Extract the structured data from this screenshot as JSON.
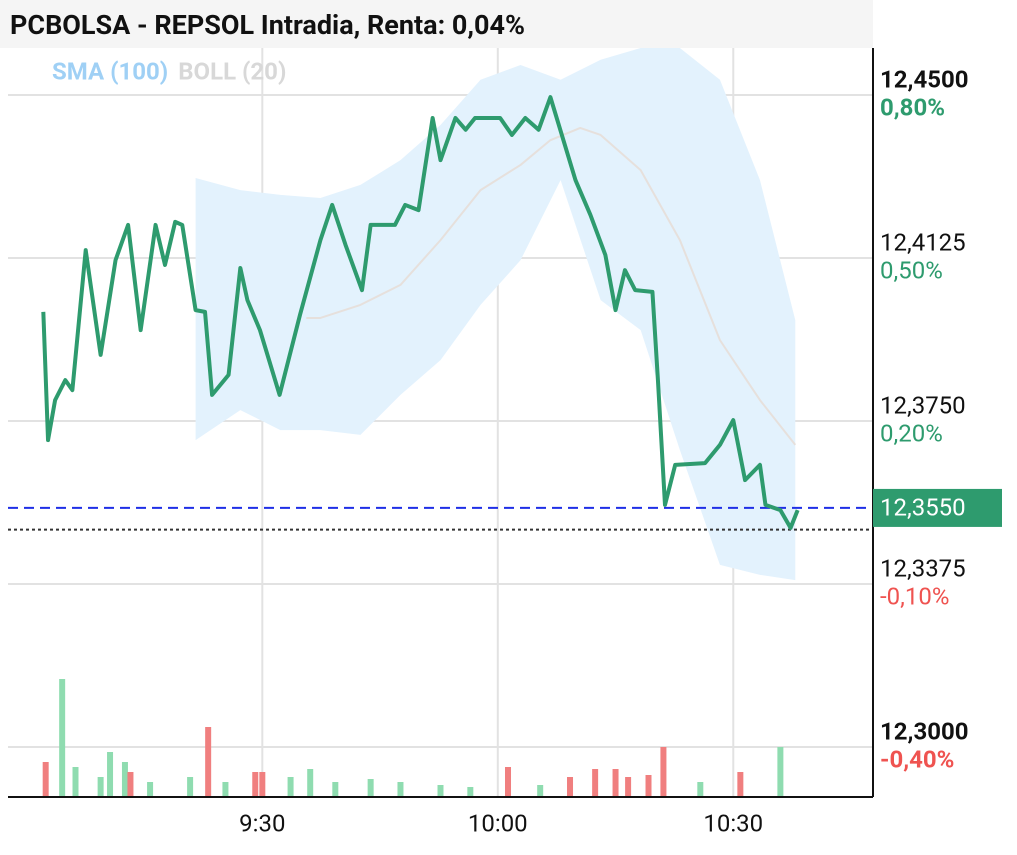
{
  "chart_data": {
    "type": "line",
    "title": "PCBOLSA - REPSOL Intradia, Renta: 0,04%",
    "legend": [
      {
        "name": "SMA (100)",
        "color": "#9fd0f5"
      },
      {
        "name": "BOLL (20)",
        "color": "#d8d8d8"
      }
    ],
    "xlim": [
      537.6,
      647.8
    ],
    "xticks": [
      {
        "value": 570,
        "label": "9:30"
      },
      {
        "value": 600,
        "label": "10:00"
      },
      {
        "value": 630,
        "label": "10:30"
      }
    ],
    "ylim": [
      12.2885,
      12.4608
    ],
    "yticks": [
      {
        "value": 12.45,
        "label": "12,4500"
      },
      {
        "value": 12.4125,
        "label": "12,4125"
      },
      {
        "value": 12.375,
        "label": "12,3750"
      },
      {
        "value": 12.3375,
        "label": "12,3375"
      },
      {
        "value": 12.3,
        "label": "12,3000"
      }
    ],
    "pct_ticks": [
      {
        "value": 0.8,
        "label": "0,80%"
      },
      {
        "value": 0.5,
        "label": "0,50%"
      },
      {
        "value": 0.2,
        "label": "0,20%"
      },
      {
        "value": -0.1,
        "label": "-0,10%"
      },
      {
        "value": -0.4,
        "label": "-0,40%"
      }
    ],
    "grid": true,
    "price": {
      "color": "#2e9b6e",
      "x": [
        542.1,
        542.7,
        543.6,
        544.9,
        545.8,
        547.5,
        549.4,
        551.3,
        552.9,
        554.5,
        556.4,
        557.6,
        558.9,
        559.8,
        561.5,
        562.7,
        563.6,
        565.7,
        567.2,
        568.1,
        569.7,
        572.2,
        574.8,
        577.4,
        578.9,
        580.6,
        582.7,
        583.8,
        586.9,
        588.2,
        589.9,
        591.7,
        592.7,
        594.6,
        595.9,
        597.1,
        600.3,
        601.8,
        603.5,
        605.2,
        606.7,
        609.9,
        611.8,
        613.7,
        615.0,
        616.2,
        617.5,
        619.7,
        620.4,
        621.3,
        622.6,
        626.4,
        628.3,
        630.0,
        631.5,
        633.4,
        634.1,
        636.0,
        637.3,
        638.2
      ],
      "values": [
        12.4001,
        12.3706,
        12.3798,
        12.3844,
        12.3821,
        12.4143,
        12.3902,
        12.412,
        12.4201,
        12.3959,
        12.4201,
        12.4109,
        12.4208,
        12.4201,
        12.4005,
        12.4001,
        12.381,
        12.3856,
        12.4102,
        12.4028,
        12.3959,
        12.381,
        12.3994,
        12.4166,
        12.4247,
        12.4155,
        12.4051,
        12.4201,
        12.4201,
        12.4247,
        12.4235,
        12.4447,
        12.435,
        12.4447,
        12.442,
        12.4447,
        12.4447,
        12.4408,
        12.4447,
        12.442,
        12.4495,
        12.4304,
        12.4224,
        12.4132,
        12.4005,
        12.4097,
        12.4051,
        12.4047,
        12.3844,
        12.3557,
        12.3649,
        12.3653,
        12.3695,
        12.3752,
        12.3614,
        12.3649,
        12.3557,
        12.3545,
        12.3504,
        12.3545
      ]
    },
    "band": {
      "fill": "#e3f2fd",
      "x": [
        561.5,
        567.2,
        572.3,
        577.4,
        582.5,
        587.6,
        592.7,
        597.8,
        602.9,
        608.0,
        613.1,
        618.2,
        623.2,
        628.3,
        633.4,
        637.9
      ],
      "upper": [
        12.4309,
        12.4281,
        12.427,
        12.4263,
        12.4293,
        12.435,
        12.4431,
        12.4535,
        12.4569,
        12.4535,
        12.4581,
        12.4608,
        12.4608,
        12.4535,
        12.4304,
        12.3982
      ],
      "lower": [
        12.3706,
        12.3775,
        12.3729,
        12.3729,
        12.3718,
        12.381,
        12.389,
        12.4017,
        12.412,
        12.4304,
        12.4028,
        12.3959,
        12.3683,
        12.3419,
        12.3396,
        12.3384
      ]
    },
    "mid": {
      "color": "#e6e0dc",
      "x": [
        575.6,
        577.4,
        582.5,
        587.6,
        592.7,
        597.8,
        602.9,
        606.7,
        610.5,
        613.1,
        618.2,
        623.2,
        628.3,
        633.4,
        637.9
      ],
      "values": [
        12.3987,
        12.3987,
        12.4017,
        12.4063,
        12.4166,
        12.4281,
        12.4339,
        12.4396,
        12.4424,
        12.4408,
        12.4327,
        12.4166,
        12.3936,
        12.3798,
        12.3695
      ]
    },
    "last_price": {
      "value": 12.355,
      "label": "12,3550",
      "color": "#2e9b6e",
      "line_color": "#1f2fe6"
    },
    "reference": 12.35,
    "volume_lim": [
      0,
      150
    ],
    "volume": {
      "up_color": "#8fdcb0",
      "down_color": "#f07f7f",
      "x": [
        542.4,
        544.5,
        546.2,
        549.4,
        550.6,
        552.5,
        553.2,
        555.7,
        560.8,
        563.1,
        565.3,
        569.1,
        570.0,
        573.6,
        576.1,
        579.3,
        583.8,
        587.6,
        592.7,
        596.5,
        601.3,
        605.4,
        609.2,
        612.4,
        615.0,
        616.6,
        619.2,
        621.1,
        625.8,
        630.9,
        636.0
      ],
      "values": [
        35,
        118,
        30,
        20,
        45,
        35,
        25,
        15,
        20,
        70,
        15,
        25,
        25,
        20,
        28,
        15,
        18,
        15,
        12,
        10,
        30,
        12,
        20,
        28,
        28,
        20,
        22,
        50,
        15,
        25,
        50
      ],
      "up": [
        false,
        true,
        true,
        true,
        true,
        true,
        false,
        true,
        true,
        false,
        true,
        false,
        false,
        true,
        true,
        true,
        true,
        true,
        true,
        true,
        false,
        true,
        false,
        false,
        false,
        false,
        false,
        false,
        true,
        false,
        true
      ]
    }
  }
}
